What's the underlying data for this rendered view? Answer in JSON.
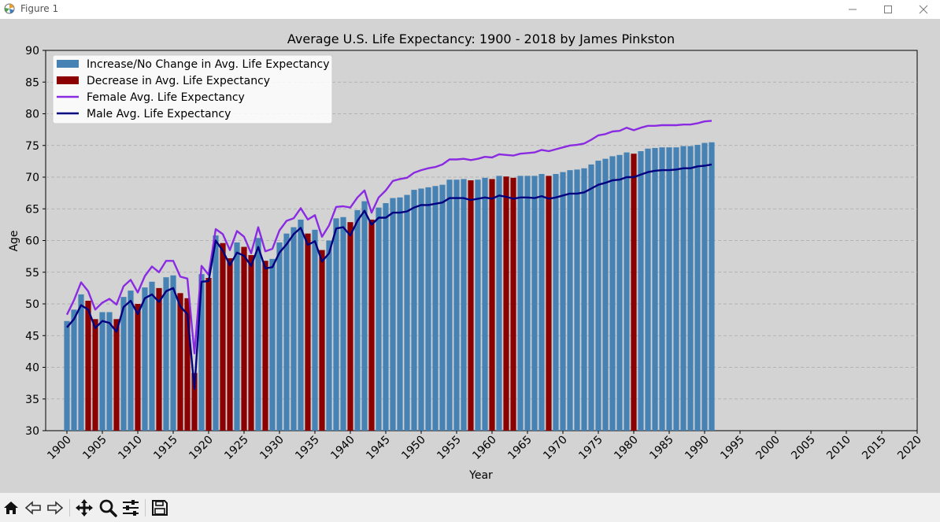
{
  "window": {
    "title": "Figure 1"
  },
  "toolbar": {
    "icons": [
      "home-icon",
      "back-icon",
      "forward-icon",
      "pan-icon",
      "zoom-icon",
      "configure-icon",
      "save-icon"
    ]
  },
  "chart_data": {
    "type": "bar",
    "title": "Average U.S. Life Expectancy: 1900 - 2018 by James Pinkston",
    "xlabel": "Year",
    "ylabel": "Age",
    "xlim": [
      1897,
      2020
    ],
    "ylim": [
      30,
      90
    ],
    "xticks": [
      "1900",
      "1905",
      "1910",
      "1915",
      "1920",
      "1925",
      "1930",
      "1935",
      "1940",
      "1945",
      "1950",
      "1955",
      "1960",
      "1965",
      "1970",
      "1975",
      "1980",
      "1985",
      "1990",
      "1995",
      "2000",
      "2005",
      "2010",
      "2015",
      "2020"
    ],
    "yticks": [
      "30",
      "35",
      "40",
      "45",
      "50",
      "55",
      "60",
      "65",
      "70",
      "75",
      "80",
      "85",
      "90"
    ],
    "grid": "y-dashed",
    "legend_position": "top-left",
    "legend": [
      "Increase/No Change in Avg. Life Expectancy",
      "Decrease in Avg. Life Expectancy",
      "Female Avg. Life Expectancy",
      "Male Avg. Life Expectancy"
    ],
    "colors": {
      "increase": "#4682b4",
      "decrease": "#8b0000",
      "female": "#8a2be2",
      "male": "#000080"
    },
    "years": [
      1900,
      1901,
      1902,
      1903,
      1904,
      1905,
      1906,
      1907,
      1908,
      1909,
      1910,
      1911,
      1912,
      1913,
      1914,
      1915,
      1916,
      1917,
      1918,
      1919,
      1920,
      1921,
      1922,
      1923,
      1924,
      1925,
      1926,
      1927,
      1928,
      1929,
      1930,
      1931,
      1932,
      1933,
      1934,
      1935,
      1936,
      1937,
      1938,
      1939,
      1940,
      1941,
      1942,
      1943,
      1944,
      1945,
      1946,
      1947,
      1948,
      1949,
      1950,
      1951,
      1952,
      1953,
      1954,
      1955,
      1956,
      1957,
      1958,
      1959,
      1960,
      1961,
      1962,
      1963,
      1964,
      1965,
      1966,
      1967,
      1968,
      1969,
      1970,
      1971,
      1972,
      1973,
      1974,
      1975,
      1976,
      1977,
      1978,
      1979,
      1980,
      1981,
      1982,
      1983,
      1984,
      1985,
      1986,
      1987,
      1988,
      1989,
      1990,
      1991
    ],
    "average": [
      47.3,
      49.1,
      51.5,
      50.5,
      47.6,
      48.7,
      48.7,
      47.6,
      51.1,
      52.1,
      50.0,
      52.6,
      53.5,
      52.5,
      54.2,
      54.5,
      51.7,
      50.9,
      39.1,
      54.7,
      54.1,
      60.8,
      59.6,
      57.2,
      59.7,
      59.0,
      57.7,
      60.4,
      56.8,
      57.1,
      59.7,
      61.1,
      62.1,
      63.3,
      61.1,
      61.7,
      58.5,
      60.0,
      63.5,
      63.7,
      62.9,
      64.8,
      66.2,
      63.3,
      65.2,
      65.9,
      66.7,
      66.8,
      67.2,
      68.0,
      68.2,
      68.4,
      68.6,
      68.8,
      69.6,
      69.6,
      69.7,
      69.5,
      69.6,
      69.9,
      69.7,
      70.2,
      70.1,
      69.9,
      70.2,
      70.2,
      70.2,
      70.5,
      70.2,
      70.5,
      70.8,
      71.1,
      71.2,
      71.4,
      72.0,
      72.6,
      72.9,
      73.3,
      73.5,
      73.9,
      73.7,
      74.1,
      74.5,
      74.6,
      74.7,
      74.7,
      74.7,
      74.9,
      74.9,
      75.1,
      75.4,
      75.5
    ],
    "female": [
      48.3,
      50.6,
      53.4,
      52.0,
      49.1,
      50.2,
      50.8,
      49.9,
      52.8,
      53.8,
      51.8,
      54.4,
      55.9,
      55.0,
      56.8,
      56.8,
      54.3,
      54.0,
      42.2,
      56.0,
      54.6,
      61.8,
      61.0,
      58.5,
      61.5,
      60.6,
      58.0,
      62.1,
      58.3,
      58.7,
      61.6,
      63.1,
      63.5,
      65.1,
      63.3,
      64.0,
      60.6,
      62.4,
      65.3,
      65.4,
      65.2,
      66.8,
      67.9,
      64.4,
      66.8,
      67.9,
      69.4,
      69.7,
      69.9,
      70.7,
      71.1,
      71.4,
      71.6,
      72.0,
      72.8,
      72.8,
      72.9,
      72.7,
      72.9,
      73.2,
      73.1,
      73.6,
      73.5,
      73.4,
      73.7,
      73.8,
      73.9,
      74.3,
      74.1,
      74.4,
      74.7,
      75.0,
      75.1,
      75.3,
      75.9,
      76.6,
      76.8,
      77.2,
      77.3,
      77.8,
      77.4,
      77.8,
      78.1,
      78.1,
      78.2,
      78.2,
      78.2,
      78.3,
      78.3,
      78.5,
      78.8,
      78.9
    ],
    "male": [
      46.3,
      47.6,
      49.8,
      49.1,
      46.2,
      47.3,
      47.0,
      45.6,
      49.5,
      50.5,
      48.4,
      50.9,
      51.5,
      50.3,
      52.0,
      52.5,
      49.6,
      48.4,
      36.6,
      53.5,
      53.6,
      60.0,
      58.4,
      56.1,
      58.1,
      57.6,
      56.0,
      59.0,
      55.6,
      55.8,
      58.1,
      59.4,
      61.0,
      62.0,
      59.3,
      59.9,
      56.7,
      58.0,
      61.9,
      62.1,
      60.8,
      63.1,
      64.7,
      62.5,
      63.6,
      63.6,
      64.4,
      64.4,
      64.6,
      65.2,
      65.6,
      65.6,
      65.8,
      66.0,
      66.7,
      66.7,
      66.7,
      66.4,
      66.6,
      66.8,
      66.6,
      67.1,
      66.9,
      66.6,
      66.8,
      66.8,
      66.7,
      67.0,
      66.6,
      66.8,
      67.1,
      67.4,
      67.4,
      67.6,
      68.2,
      68.8,
      69.1,
      69.5,
      69.6,
      70.0,
      70.0,
      70.4,
      70.8,
      71.0,
      71.1,
      71.1,
      71.2,
      71.4,
      71.4,
      71.7,
      71.8,
      72.0
    ]
  }
}
